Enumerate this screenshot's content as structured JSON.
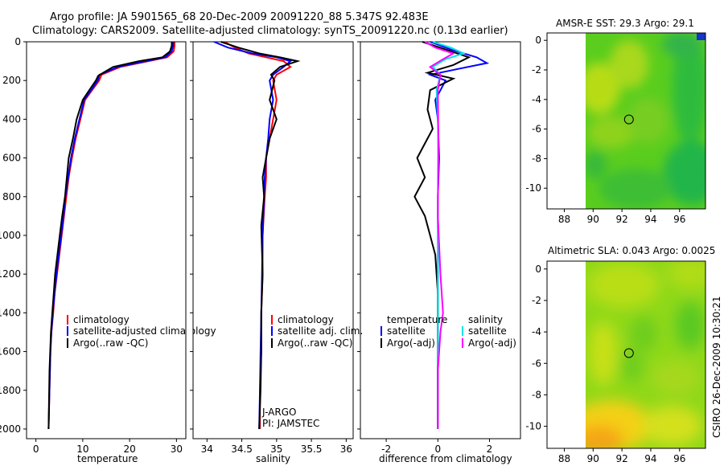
{
  "title": {
    "line1": "Argo profile: JA 5901565_68 20-Dec-2009 20091220_88 5.347S 92.483E",
    "line2": "Climatology: CARS2009. Satellite-adjusted climatology: synTS_20091220.nc (0.13d earlier)"
  },
  "footer": "CSIRO 26-Dec-2009 10:30:21",
  "colors": {
    "climatology": "#ff0000",
    "satellite": "#0000ff",
    "argo": "#000000",
    "temp_sat": "#0000ff",
    "sal_sat": "#00e5e5",
    "sal_argo": "#ff00ff"
  },
  "chart_data": [
    {
      "type": "line",
      "id": "temperature",
      "xlabel": "temperature",
      "xlim": [
        -2,
        32
      ],
      "ylim": [
        0,
        2050
      ],
      "xticks": [
        "0",
        "10",
        "20",
        "30"
      ],
      "yticks": [
        "0",
        "200",
        "400",
        "600",
        "800",
        "1000",
        "1200",
        "1400",
        "1600",
        "1800",
        "2000"
      ],
      "legend": [
        "climatology",
        "satellite-adjusted climatology",
        "Argo(..raw -QC)"
      ],
      "series": [
        {
          "name": "climatology",
          "x": [
            29.6,
            29.6,
            29.4,
            28,
            24,
            18,
            14,
            13.5,
            12,
            10.5,
            9.5,
            8.5,
            7.7,
            7,
            6.5,
            6,
            5.5,
            5,
            4.5,
            4,
            3.7,
            3.3,
            3.1,
            2.9,
            2.7
          ],
          "y": [
            0,
            20,
            50,
            80,
            100,
            130,
            170,
            200,
            250,
            300,
            400,
            500,
            600,
            700,
            800,
            900,
            1000,
            1100,
            1200,
            1300,
            1400,
            1500,
            1600,
            1800,
            2000
          ]
        },
        {
          "name": "satellite-adjusted climatology",
          "x": [
            29.3,
            29.3,
            29,
            27.6,
            23.5,
            17.5,
            13.6,
            13.2,
            11.8,
            10.3,
            9.3,
            8.3,
            7.5,
            6.9,
            6.3,
            5.9,
            5.4,
            4.9,
            4.4,
            4,
            3.6,
            3.3,
            3.1,
            2.9,
            2.7
          ],
          "y": [
            0,
            20,
            50,
            80,
            100,
            130,
            170,
            200,
            250,
            300,
            400,
            500,
            600,
            700,
            800,
            900,
            1000,
            1100,
            1200,
            1300,
            1400,
            1500,
            1600,
            1800,
            2000
          ]
        },
        {
          "name": "Argo(..raw -QC)",
          "x": [
            29,
            29,
            28.6,
            27,
            22,
            16.5,
            13.3,
            12.8,
            11.4,
            10,
            8.7,
            7.9,
            7,
            6.6,
            6.2,
            5.6,
            5.1,
            4.6,
            4.1,
            3.8,
            3.5,
            3.2,
            2.9,
            2.7
          ],
          "y": [
            0,
            20,
            50,
            80,
            100,
            130,
            175,
            200,
            250,
            300,
            400,
            500,
            600,
            700,
            800,
            900,
            1000,
            1100,
            1200,
            1300,
            1400,
            1500,
            1700,
            2000
          ]
        }
      ]
    },
    {
      "type": "line",
      "id": "salinity",
      "xlabel": "salinity",
      "xlim": [
        33.8,
        36.1
      ],
      "ylim": [
        0,
        2050
      ],
      "xticks": [
        "34",
        "34.5",
        "35",
        "35.5",
        "36"
      ],
      "yticks": [
        "0",
        "200",
        "400",
        "600",
        "800",
        "1000",
        "1200",
        "1400",
        "1600",
        "1800",
        "2000"
      ],
      "legend": [
        "climatology",
        "satellite adj. clim.",
        "Argo(..raw -QC)"
      ],
      "annotation": [
        "J-ARGO",
        "PI: JAMSTEC"
      ],
      "series": [
        {
          "name": "climatology",
          "x": [
            34.25,
            34.4,
            34.6,
            34.85,
            35.1,
            35.2,
            35,
            34.95,
            35,
            34.95,
            34.9,
            34.85,
            34.85,
            34.83,
            34.8,
            34.8,
            34.78,
            34.78,
            34.76,
            34.76
          ],
          "y": [
            0,
            30,
            60,
            80,
            100,
            130,
            170,
            200,
            300,
            400,
            500,
            600,
            700,
            800,
            1000,
            1200,
            1400,
            1600,
            1800,
            2000
          ]
        },
        {
          "name": "satellite adj. clim.",
          "x": [
            34.1,
            34.3,
            34.65,
            35,
            35.2,
            35.1,
            34.95,
            34.9,
            34.95,
            34.9,
            34.88,
            34.85,
            34.83,
            34.82,
            34.8,
            34.79,
            34.78,
            34.77,
            34.76,
            34.75
          ],
          "y": [
            0,
            30,
            60,
            80,
            100,
            130,
            170,
            200,
            300,
            400,
            500,
            600,
            700,
            800,
            1000,
            1200,
            1400,
            1600,
            1800,
            2000
          ]
        },
        {
          "name": "Argo(..raw -QC)",
          "x": [
            34.2,
            34.45,
            34.75,
            35.05,
            35.3,
            35.05,
            34.92,
            34.97,
            34.9,
            35.0,
            34.9,
            34.85,
            34.8,
            34.82,
            34.78,
            34.8,
            34.78,
            34.78,
            34.77,
            34.75
          ],
          "y": [
            0,
            30,
            60,
            80,
            100,
            130,
            170,
            200,
            300,
            400,
            500,
            600,
            700,
            800,
            950,
            1200,
            1400,
            1600,
            1800,
            2000
          ]
        }
      ]
    },
    {
      "type": "line",
      "id": "difference",
      "xlabel": "difference from climatology",
      "xlim": [
        -3,
        3.2
      ],
      "ylim": [
        0,
        2050
      ],
      "xticks": [
        "-2",
        "0",
        "2"
      ],
      "yticks": [
        "0",
        "200",
        "400",
        "600",
        "800",
        "1000",
        "1200",
        "1400",
        "1600",
        "1800",
        "2000"
      ],
      "legend_temp": [
        "temperature",
        "satellite",
        "Argo(-adj)"
      ],
      "legend_sal": [
        "salinity",
        "satellite",
        "Argo(-adj)"
      ],
      "series": [
        {
          "name": "temperature satellite",
          "x": [
            -0.3,
            0.5,
            1.5,
            1.9,
            0.8,
            -0.3,
            0.3,
            -0.1,
            0,
            0.05,
            0,
            0,
            0,
            0,
            0
          ],
          "y": [
            0,
            40,
            80,
            110,
            140,
            170,
            200,
            300,
            400,
            600,
            800,
            1000,
            1400,
            1800,
            2000
          ]
        },
        {
          "name": "temperature Argo(-adj)",
          "x": [
            -0.6,
            0.3,
            1.2,
            0.6,
            -0.4,
            0.6,
            -0.3,
            -0.4,
            -0.2,
            -0.8,
            -0.5,
            -0.9,
            -0.5,
            -0.3,
            -0.1,
            0,
            0,
            0
          ],
          "y": [
            0,
            40,
            80,
            120,
            160,
            190,
            250,
            350,
            450,
            600,
            700,
            800,
            900,
            1000,
            1100,
            1300,
            1600,
            2000
          ]
        },
        {
          "name": "salinity satellite",
          "x": [
            -0.2,
            0.5,
            1,
            0.3,
            -0.2,
            0.1,
            -0.05,
            0,
            0.02,
            0,
            0,
            0,
            0
          ],
          "y": [
            0,
            30,
            60,
            90,
            130,
            170,
            250,
            400,
            600,
            800,
            1200,
            1600,
            2000
          ]
        },
        {
          "name": "salinity Argo(-adj)",
          "x": [
            -0.5,
            -0.1,
            0.6,
            0.2,
            -0.3,
            0.1,
            0,
            0.02,
            0,
            0.1,
            0.2,
            0.1,
            0,
            0
          ],
          "y": [
            0,
            30,
            60,
            90,
            130,
            170,
            250,
            500,
            900,
            1200,
            1400,
            1500,
            1700,
            2000
          ]
        }
      ]
    },
    {
      "type": "heatmap",
      "id": "amsre-sst",
      "title": "AMSR-E SST: 29.3 Argo: 29.1",
      "xlim": [
        86.8,
        97.8
      ],
      "ylim": [
        -11.4,
        0.5
      ],
      "xticks": [
        "88",
        "90",
        "92",
        "94",
        "96"
      ],
      "yticks": [
        "0",
        "-2",
        "-4",
        "-6",
        "-8",
        "-10"
      ],
      "marker": {
        "lon": 92.483,
        "lat": -5.347
      }
    },
    {
      "type": "heatmap",
      "id": "altimetric-sla",
      "title": "Altimetric SLA: 0.043 Argo: 0.0025",
      "xlim": [
        86.8,
        97.8
      ],
      "ylim": [
        -11.4,
        0.5
      ],
      "xticks": [
        "88",
        "90",
        "92",
        "94",
        "96"
      ],
      "yticks": [
        "0",
        "-2",
        "-4",
        "-6",
        "-8",
        "-10"
      ],
      "marker": {
        "lon": 92.483,
        "lat": -5.347
      }
    }
  ]
}
